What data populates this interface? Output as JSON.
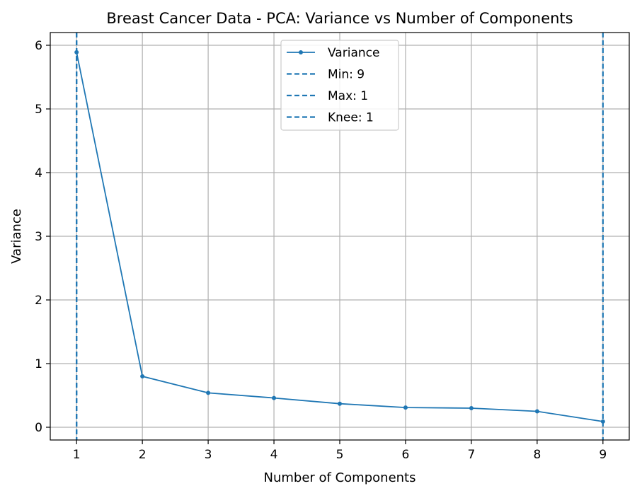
{
  "chart_data": {
    "type": "line",
    "title": "Breast Cancer Data - PCA: Variance vs Number of Components",
    "xlabel": "Number of Components",
    "ylabel": "Variance",
    "x": [
      1,
      2,
      3,
      4,
      5,
      6,
      7,
      8,
      9
    ],
    "xlim": [
      0.6,
      9.4
    ],
    "ylim": [
      -0.2,
      6.2
    ],
    "xticks": [
      1,
      2,
      3,
      4,
      5,
      6,
      7,
      8,
      9
    ],
    "yticks": [
      0,
      1,
      2,
      3,
      4,
      5,
      6
    ],
    "grid": true,
    "legend_position": "top-center",
    "series": [
      {
        "name": "Variance",
        "values": [
          5.89,
          0.8,
          0.54,
          0.46,
          0.37,
          0.31,
          0.3,
          0.25,
          0.09
        ],
        "color": "#1f77b4",
        "marker": "dot"
      }
    ],
    "vlines": [
      {
        "name": "Min: 9",
        "x": 9,
        "color": "#1f77b4",
        "style": "dashed"
      },
      {
        "name": "Max: 1",
        "x": 1,
        "color": "#1f77b4",
        "style": "dashed"
      },
      {
        "name": "Knee: 1",
        "x": 1,
        "color": "#1f77b4",
        "style": "dashed"
      }
    ]
  }
}
